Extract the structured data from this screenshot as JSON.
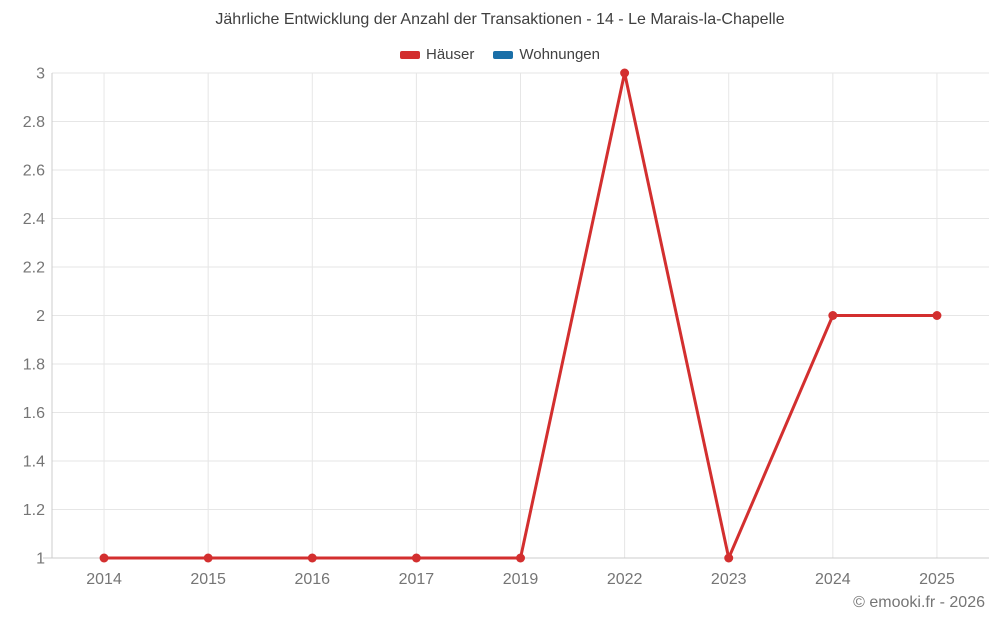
{
  "chart_data": {
    "type": "line",
    "title": "Jährliche Entwicklung der Anzahl der Transaktionen - 14 - Le Marais-la-Chapelle",
    "categories": [
      "2014",
      "2015",
      "2016",
      "2017",
      "2019",
      "2022",
      "2023",
      "2024",
      "2025"
    ],
    "series": [
      {
        "name": "Häuser",
        "color": "#d32f2f",
        "values": [
          1,
          1,
          1,
          1,
          1,
          3,
          1,
          2,
          2
        ]
      },
      {
        "name": "Wohnungen",
        "color": "#1a6fa8",
        "values": []
      }
    ],
    "xlabel": "",
    "ylabel": "",
    "ylim": [
      1,
      3
    ],
    "ytick_step": 0.2,
    "yticks": [
      1,
      1.2,
      1.4,
      1.6,
      1.8,
      2,
      2.2,
      2.4,
      2.6,
      2.8,
      3
    ],
    "grid": true,
    "legend_position": "top"
  },
  "footer": {
    "copyright": "© emooki.fr - 2026"
  },
  "colors": {
    "background": "#ffffff",
    "grid": "#e6e6e6",
    "axis": "#cccccc",
    "tick_label": "#757575",
    "title": "#3f3f3f",
    "legend_label": "#424242",
    "footer": "#757575"
  }
}
